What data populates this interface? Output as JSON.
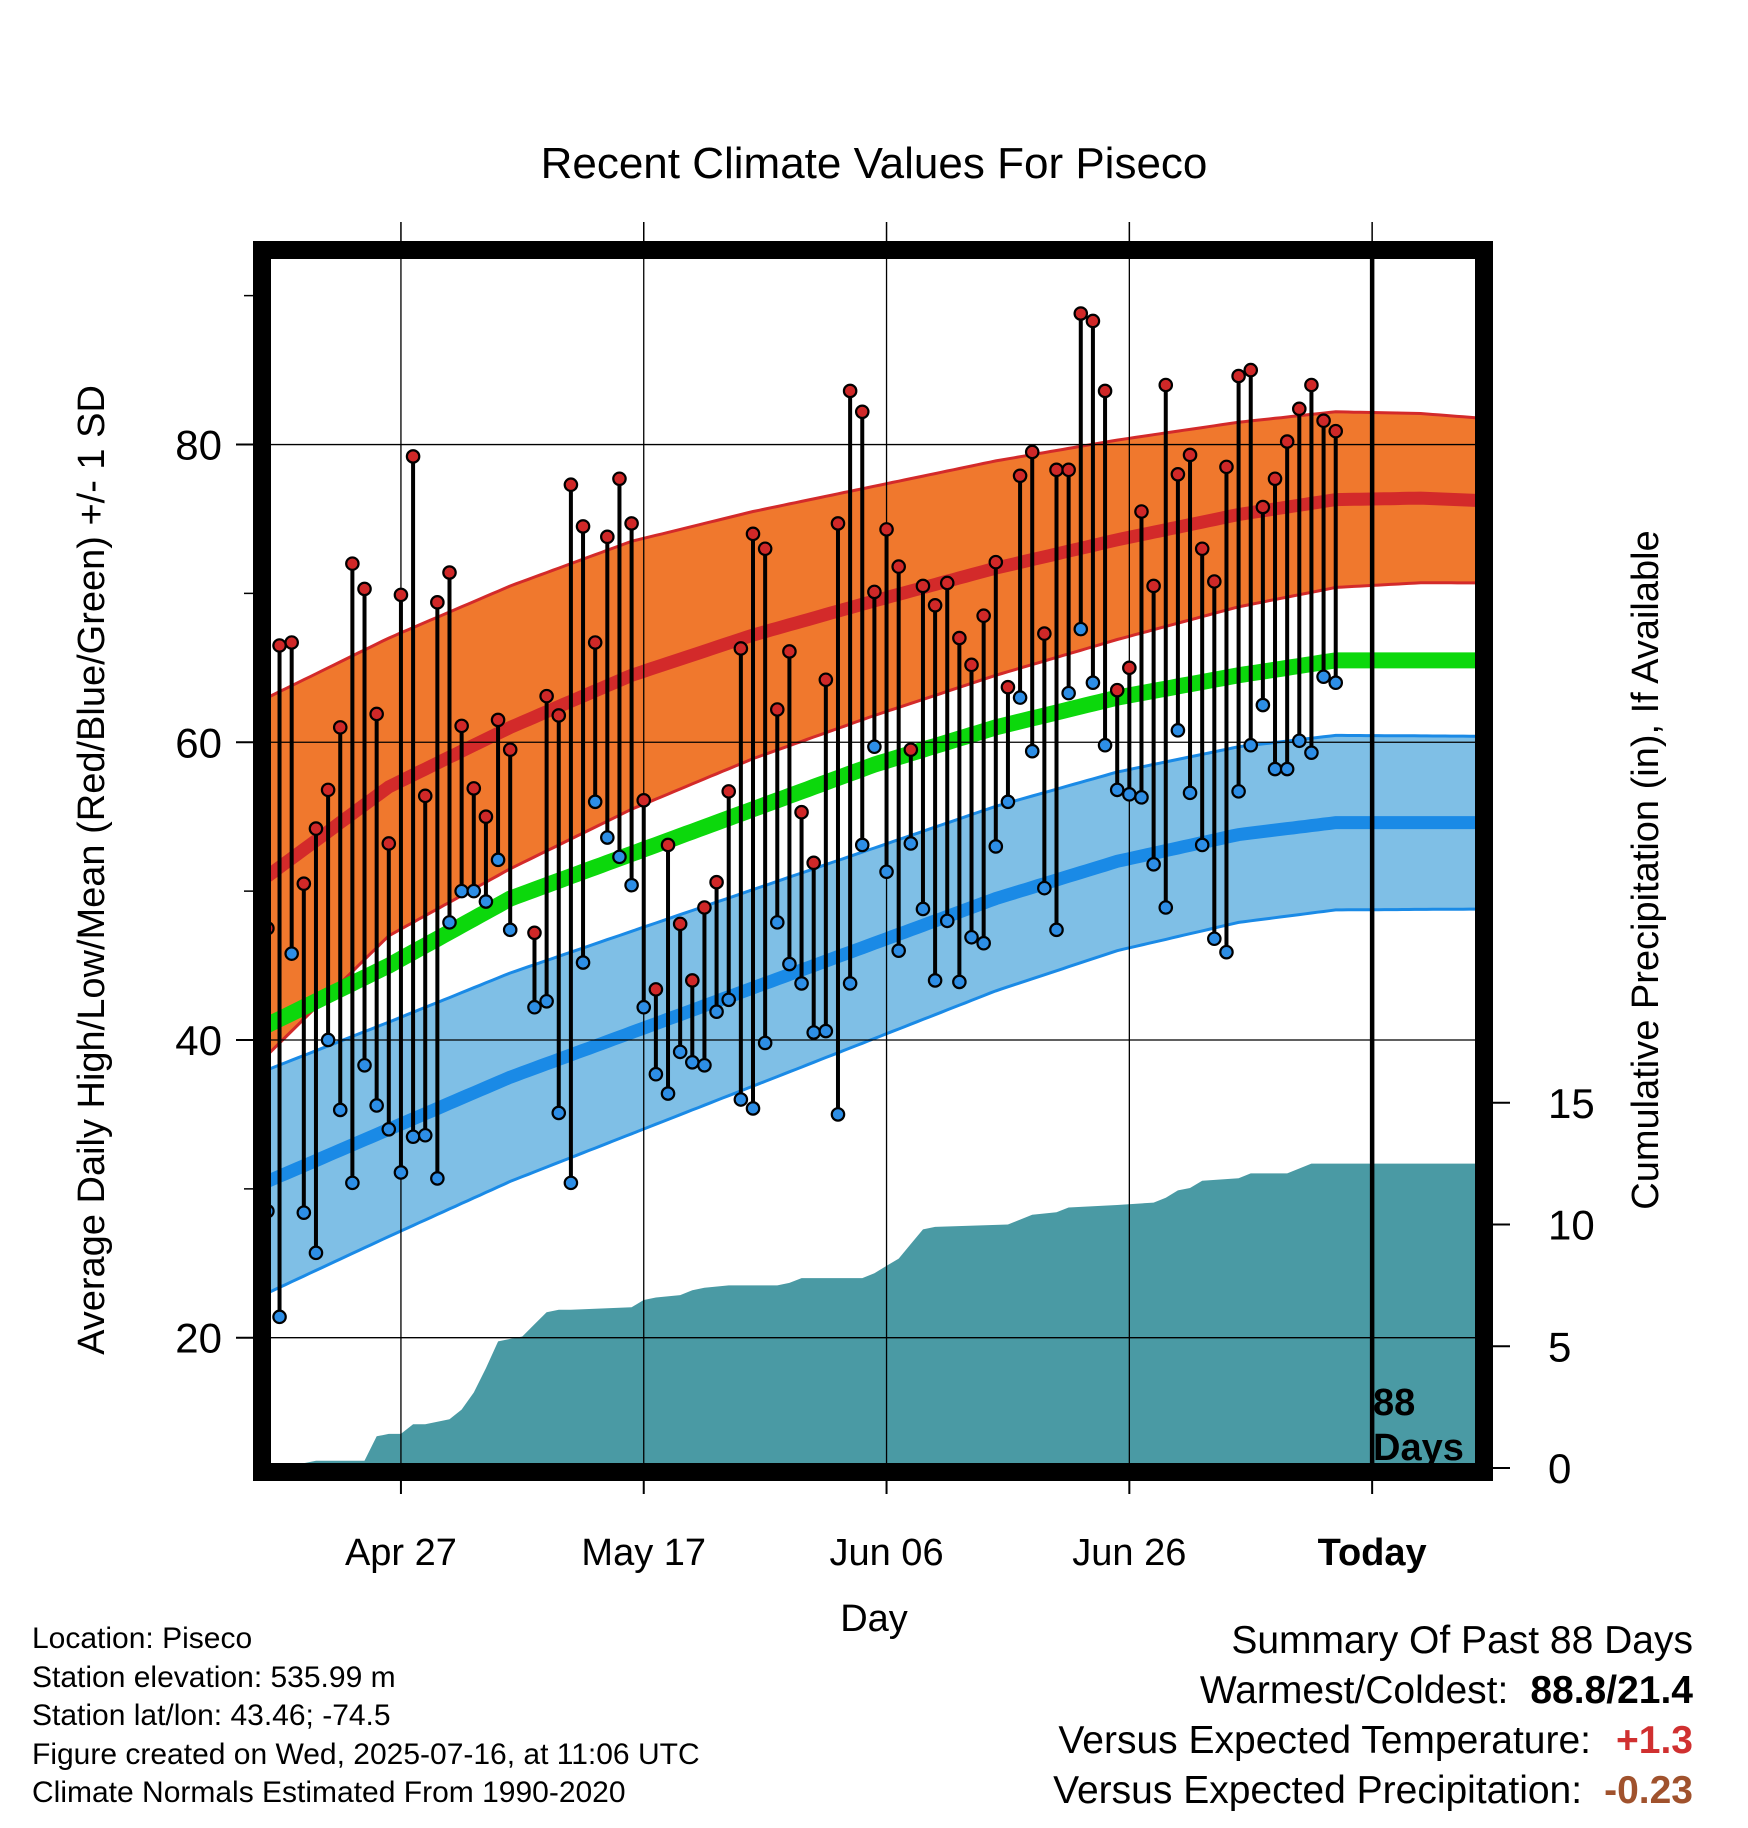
{
  "chart_data": {
    "type": "line",
    "title": "Recent Climate Values For Piseco",
    "xlabel": "Day",
    "ylabel": "Average Daily High/Low/Mean (Red/Blue/Green) +/- 1 SD",
    "y2label": "Cumulative Precipitation (in), If Available",
    "x_tick_labels": [
      "Apr 27",
      "May 17",
      "Jun 06",
      "Jun 26",
      "Today"
    ],
    "x_tick_days": [
      11,
      31,
      51,
      71,
      91
    ],
    "y_ticks": [
      20,
      40,
      60,
      80
    ],
    "y2_ticks": [
      0,
      5,
      10,
      15
    ],
    "ylim": [
      12,
      96
    ],
    "y2lim": [
      0,
      25
    ],
    "xlim": [
      0,
      101
    ],
    "grid": true,
    "today_label_1": "88",
    "today_label_2": "Days",
    "normal_high": [
      [
        0,
        51
      ],
      [
        10,
        57
      ],
      [
        20,
        61
      ],
      [
        30,
        64.5
      ],
      [
        40,
        67.2
      ],
      [
        50,
        69.5
      ],
      [
        60,
        71.7
      ],
      [
        70,
        73.6
      ],
      [
        80,
        75.3
      ],
      [
        88,
        76.3
      ],
      [
        95,
        76.4
      ],
      [
        101,
        76.2
      ]
    ],
    "normal_high_sd": [
      [
        0,
        12
      ],
      [
        10,
        10
      ],
      [
        20,
        9.5
      ],
      [
        30,
        9
      ],
      [
        40,
        8.3
      ],
      [
        50,
        7.7
      ],
      [
        60,
        7.2
      ],
      [
        70,
        6.7
      ],
      [
        80,
        6.2
      ],
      [
        88,
        5.9
      ],
      [
        101,
        5.5
      ]
    ],
    "normal_mean": [
      [
        0,
        41
      ],
      [
        10,
        45
      ],
      [
        20,
        49.5
      ],
      [
        30,
        52.5
      ],
      [
        40,
        55.5
      ],
      [
        50,
        58.5
      ],
      [
        60,
        61
      ],
      [
        70,
        63
      ],
      [
        80,
        64.5
      ],
      [
        88,
        65.5
      ],
      [
        101,
        65.5
      ]
    ],
    "normal_low": [
      [
        0,
        30.5
      ],
      [
        10,
        34
      ],
      [
        20,
        37.5
      ],
      [
        30,
        40.5
      ],
      [
        40,
        43.5
      ],
      [
        50,
        46.5
      ],
      [
        60,
        49.5
      ],
      [
        70,
        52
      ],
      [
        80,
        53.8
      ],
      [
        88,
        54.6
      ],
      [
        101,
        54.6
      ]
    ],
    "normal_low_sd": [
      [
        0,
        7.5
      ],
      [
        10,
        7.2
      ],
      [
        20,
        7
      ],
      [
        30,
        6.8
      ],
      [
        40,
        6.6
      ],
      [
        50,
        6.4
      ],
      [
        60,
        6.2
      ],
      [
        70,
        6
      ],
      [
        80,
        5.9
      ],
      [
        101,
        5.8
      ]
    ],
    "highs": [
      47.5,
      66.5,
      66.7,
      50.5,
      54.2,
      56.8,
      61,
      72,
      70.3,
      61.9,
      53.2,
      69.9,
      79.2,
      56.4,
      69.4,
      71.4,
      61.1,
      56.9,
      55,
      61.5,
      59.5,
      null,
      47.2,
      63.1,
      61.8,
      77.3,
      74.5,
      66.7,
      73.8,
      77.7,
      74.7,
      56.1,
      43.4,
      53.1,
      47.8,
      44,
      48.9,
      50.6,
      56.7,
      66.3,
      74,
      73,
      62.2,
      66.1,
      55.3,
      51.9,
      64.2,
      74.7,
      83.6,
      82.2,
      70.1,
      74.3,
      71.8,
      59.5,
      70.5,
      69.2,
      70.7,
      67,
      65.2,
      68.5,
      72.1,
      63.7,
      77.9,
      79.5,
      67.3,
      78.3,
      78.3,
      88.8,
      88.3,
      83.6,
      63.5,
      65,
      75.5,
      70.5,
      84,
      78,
      79.3,
      73,
      70.8,
      78.5,
      84.6,
      85,
      75.8,
      77.7,
      80.2,
      82.4,
      84,
      81.6,
      80.9
    ],
    "lows": [
      28.5,
      21.4,
      45.8,
      28.4,
      25.7,
      40,
      35.3,
      30.4,
      38.3,
      35.6,
      34,
      31.1,
      33.5,
      33.6,
      30.7,
      47.9,
      50,
      50,
      49.3,
      52.1,
      47.4,
      null,
      42.2,
      42.6,
      35.1,
      30.4,
      45.2,
      56,
      53.6,
      52.3,
      50.4,
      42.2,
      37.7,
      36.4,
      39.2,
      38.5,
      38.3,
      41.9,
      42.7,
      36,
      35.4,
      39.8,
      47.9,
      45.1,
      43.8,
      40.5,
      40.6,
      35,
      43.8,
      53.1,
      59.7,
      51.3,
      46,
      53.2,
      48.8,
      44,
      48,
      43.9,
      46.9,
      46.5,
      53,
      56,
      63,
      59.4,
      50.2,
      47.4,
      63.3,
      67.6,
      64,
      59.8,
      56.8,
      56.5,
      56.3,
      51.8,
      48.9,
      60.8,
      56.6,
      53.1,
      46.8,
      45.9,
      56.7,
      59.8,
      62.5,
      58.2,
      58.2,
      60.1,
      59.3,
      64.4,
      64
    ],
    "precip_cumulative": [
      [
        0,
        0
      ],
      [
        2,
        0.1
      ],
      [
        4,
        0.3
      ],
      [
        8,
        0.3
      ],
      [
        9,
        1.3
      ],
      [
        10,
        1.4
      ],
      [
        11,
        1.4
      ],
      [
        12,
        1.8
      ],
      [
        13,
        1.8
      ],
      [
        14,
        1.9
      ],
      [
        15,
        2
      ],
      [
        16,
        2.4
      ],
      [
        17,
        3.1
      ],
      [
        18,
        4.1
      ],
      [
        19,
        5.2
      ],
      [
        20,
        5.3
      ],
      [
        21,
        5.4
      ],
      [
        22,
        5.9
      ],
      [
        23,
        6.4
      ],
      [
        24,
        6.5
      ],
      [
        25,
        6.5
      ],
      [
        30,
        6.6
      ],
      [
        31,
        6.9
      ],
      [
        32,
        7
      ],
      [
        34,
        7.1
      ],
      [
        35,
        7.3
      ],
      [
        36,
        7.4
      ],
      [
        38,
        7.5
      ],
      [
        42,
        7.5
      ],
      [
        43,
        7.6
      ],
      [
        44,
        7.8
      ],
      [
        49,
        7.8
      ],
      [
        50,
        8
      ],
      [
        51,
        8.3
      ],
      [
        52,
        8.6
      ],
      [
        53,
        9.2
      ],
      [
        54,
        9.8
      ],
      [
        55,
        9.9
      ],
      [
        61,
        10
      ],
      [
        62,
        10.2
      ],
      [
        63,
        10.4
      ],
      [
        65,
        10.5
      ],
      [
        66,
        10.7
      ],
      [
        70,
        10.8
      ],
      [
        73,
        10.9
      ],
      [
        74,
        11.1
      ],
      [
        75,
        11.4
      ],
      [
        76,
        11.5
      ],
      [
        77,
        11.8
      ],
      [
        80,
        11.9
      ],
      [
        81,
        12.1
      ],
      [
        84,
        12.1
      ],
      [
        85,
        12.3
      ],
      [
        86,
        12.5
      ],
      [
        101,
        12.5
      ]
    ]
  },
  "info": {
    "location": "Location: Piseco",
    "elevation": "Station elevation: 535.99 m",
    "latlon": "Station lat/lon: 43.46; -74.5",
    "created": "Figure created on Wed, 2025-07-16, at 11:06 UTC",
    "normals": "Climate Normals Estimated From 1990-2020"
  },
  "summary": {
    "heading": "Summary Of Past 88 Days",
    "warm_cold_label": "Warmest/Coldest:",
    "warm_cold_value": "88.8/21.4",
    "temp_label": "Versus Expected Temperature:",
    "temp_value": "+1.3",
    "precip_label": "Versus Expected Precipitation:",
    "precip_value": "-0.23"
  },
  "colors": {
    "high_band": "#f0782d",
    "high_line": "#d32a2a",
    "low_band": "#7fbfe6",
    "low_line": "#1a8ae6",
    "mean_line": "#0cd80c",
    "precip": "#4a9aa4",
    "high_dot": "#d02828",
    "low_dot": "#2d8ee6"
  }
}
